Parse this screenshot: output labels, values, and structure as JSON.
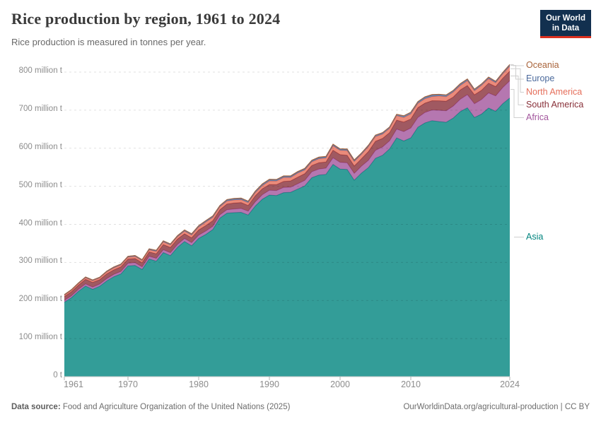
{
  "header": {
    "title": "Rice production by region, 1961 to 2024",
    "subtitle": "Rice production is measured in tonnes per year."
  },
  "logo": {
    "line1": "Our World",
    "line2": "in Data",
    "bg_color": "#12304F",
    "accent_color": "#DB301F"
  },
  "footer": {
    "source_label": "Data source:",
    "source_value": " Food and Agriculture Organization of the United Nations (2025)",
    "link_text": "OurWorldinData.org/agricultural-production | CC BY"
  },
  "chart_data": {
    "type": "area",
    "stacked": true,
    "title": "Rice production by region, 1961 to 2024",
    "subtitle": "Rice production is measured in tonnes per year.",
    "unit": "million tonnes per year",
    "xlim": [
      1961,
      2024
    ],
    "ylim": [
      0,
      824
    ],
    "grid": "dashed horizontal gridlines every 100 million t",
    "legend_position": "right, labels colored by series",
    "legend_order_top_to_bottom": [
      "Oceania",
      "Europe",
      "North America",
      "South America",
      "Africa",
      "Asia"
    ],
    "years": [
      1961,
      1962,
      1963,
      1964,
      1965,
      1966,
      1967,
      1968,
      1969,
      1970,
      1971,
      1972,
      1973,
      1974,
      1975,
      1976,
      1977,
      1978,
      1979,
      1980,
      1981,
      1982,
      1983,
      1984,
      1985,
      1986,
      1987,
      1988,
      1989,
      1990,
      1991,
      1992,
      1993,
      1994,
      1995,
      1996,
      1997,
      1998,
      1999,
      2000,
      2001,
      2002,
      2003,
      2004,
      2005,
      2006,
      2007,
      2008,
      2009,
      2010,
      2011,
      2012,
      2013,
      2014,
      2015,
      2016,
      2017,
      2018,
      2019,
      2020,
      2021,
      2022,
      2023,
      2024
    ],
    "series": [
      {
        "name": "Asia",
        "color": "#00847E",
        "values": [
          195.5,
          207.4,
          224.3,
          238.2,
          229.5,
          237.4,
          251.5,
          262.4,
          269.9,
          291.0,
          292.2,
          281.6,
          309.1,
          303.3,
          325.9,
          318.0,
          339.7,
          355.0,
          343.7,
          363.2,
          373.5,
          386.5,
          416.6,
          429.6,
          430.8,
          431.6,
          424.7,
          448.0,
          466.0,
          477.0,
          475.7,
          483.3,
          484.2,
          492.7,
          500.9,
          522.7,
          529.4,
          531.4,
          557.6,
          545.3,
          544.4,
          516.1,
          534.3,
          549.1,
          573.6,
          581.5,
          598.5,
          627.2,
          619.2,
          627.2,
          655.2,
          666.5,
          672.4,
          670.1,
          668.2,
          679.3,
          696.2,
          706.3,
          680.9,
          689.8,
          705.8,
          696.9,
          716.9,
          732.1
        ]
      },
      {
        "name": "Africa",
        "color": "#A2559C",
        "values": [
          4.9,
          5.0,
          5.3,
          5.4,
          5.6,
          5.7,
          6.1,
          6.3,
          6.5,
          6.9,
          7.0,
          6.8,
          7.1,
          7.5,
          7.5,
          7.6,
          7.6,
          7.9,
          8.2,
          8.6,
          8.9,
          8.6,
          8.4,
          9.0,
          9.6,
          10.2,
          10.1,
          11.2,
          12.0,
          12.6,
          13.2,
          13.5,
          13.4,
          13.8,
          14.6,
          15.5,
          15.9,
          16.4,
          17.2,
          17.4,
          17.3,
          17.7,
          18.3,
          19.0,
          20.7,
          21.7,
          21.1,
          23.1,
          24.5,
          26.0,
          25.5,
          27.6,
          28.0,
          29.5,
          30.0,
          31.5,
          32.5,
          34.5,
          36.0,
          38.0,
          39.5,
          40.5,
          42.5,
          45.0
        ]
      },
      {
        "name": "South America",
        "color": "#883039",
        "values": [
          9.8,
          10.5,
          10.7,
          12.0,
          12.5,
          11.5,
          12.4,
          11.8,
          12.0,
          11.0,
          11.2,
          11.0,
          11.5,
          12.0,
          13.5,
          13.8,
          14.0,
          12.5,
          12.8,
          13.5,
          14.5,
          14.8,
          13.5,
          14.8,
          15.8,
          15.5,
          15.0,
          15.8,
          15.5,
          15.0,
          15.5,
          16.0,
          16.5,
          17.5,
          17.5,
          16.5,
          16.8,
          16.0,
          20.0,
          20.5,
          19.8,
          19.5,
          19.5,
          23.0,
          23.9,
          22.5,
          21.5,
          23.5,
          25.0,
          23.5,
          26.0,
          24.5,
          24.5,
          25.0,
          25.5,
          23.5,
          24.5,
          24.0,
          23.5,
          24.5,
          25.5,
          24.5,
          24.5,
          25.5
        ]
      },
      {
        "name": "North America",
        "color": "#E56E5A",
        "values": [
          3.3,
          3.6,
          3.8,
          4.0,
          4.2,
          4.5,
          4.9,
          5.2,
          4.9,
          4.7,
          5.1,
          5.2,
          5.3,
          6.1,
          6.9,
          6.4,
          6.0,
          6.8,
          7.2,
          7.9,
          9.3,
          8.5,
          7.5,
          7.8,
          7.7,
          7.4,
          7.0,
          8.0,
          8.2,
          9.3,
          9.2,
          10.1,
          8.9,
          10.5,
          9.7,
          9.5,
          10.1,
          10.5,
          11.5,
          11.2,
          11.9,
          11.7,
          11.3,
          12.8,
          12.4,
          11.1,
          11.2,
          11.7,
          12.2,
          13.3,
          10.8,
          11.4,
          10.7,
          12.4,
          11.6,
          13.2,
          11.5,
          12.5,
          10.5,
          12.6,
          11.7,
          10.0,
          11.0,
          12.8
        ]
      },
      {
        "name": "Europe",
        "color": "#4C6A9C",
        "values": [
          1.9,
          1.9,
          2.0,
          2.1,
          2.1,
          2.0,
          2.2,
          2.3,
          2.3,
          2.4,
          2.5,
          2.5,
          2.6,
          2.7,
          2.7,
          2.5,
          2.6,
          2.8,
          2.9,
          3.0,
          3.1,
          3.2,
          3.1,
          3.3,
          3.4,
          3.5,
          3.6,
          3.6,
          3.7,
          3.7,
          3.5,
          3.4,
          3.3,
          3.2,
          3.2,
          3.3,
          3.2,
          3.1,
          3.2,
          3.2,
          3.1,
          3.2,
          3.3,
          3.4,
          3.5,
          3.4,
          3.5,
          3.5,
          4.2,
          4.3,
          4.4,
          4.2,
          4.1,
          4.0,
          4.1,
          4.1,
          4.2,
          4.1,
          4.0,
          4.0,
          4.1,
          3.4,
          3.6,
          4.0
        ]
      },
      {
        "name": "Oceania",
        "color": "#A86339",
        "values": [
          0.2,
          0.2,
          0.2,
          0.2,
          0.2,
          0.2,
          0.3,
          0.3,
          0.3,
          0.3,
          0.3,
          0.3,
          0.3,
          0.4,
          0.5,
          0.5,
          0.6,
          0.6,
          0.7,
          0.7,
          0.8,
          0.9,
          0.6,
          0.9,
          0.9,
          0.8,
          0.7,
          0.8,
          0.9,
          1.0,
          0.9,
          1.1,
          1.2,
          1.2,
          1.2,
          1.0,
          1.4,
          1.4,
          1.4,
          1.1,
          1.8,
          1.3,
          0.4,
          0.6,
          0.3,
          1.0,
          0.2,
          0.1,
          0.1,
          0.2,
          0.7,
          0.9,
          1.2,
          0.8,
          0.7,
          0.3,
          0.8,
          0.6,
          0.1,
          0.1,
          0.4,
          0.7,
          0.5,
          0.6
        ]
      }
    ],
    "yticks": [
      {
        "value": 0,
        "label": "0 t"
      },
      {
        "value": 100,
        "label": "100 million t"
      },
      {
        "value": 200,
        "label": "200 million t"
      },
      {
        "value": 300,
        "label": "300 million t"
      },
      {
        "value": 400,
        "label": "400 million t"
      },
      {
        "value": 500,
        "label": "500 million t"
      },
      {
        "value": 600,
        "label": "600 million t"
      },
      {
        "value": 700,
        "label": "700 million t"
      },
      {
        "value": 800,
        "label": "800 million t"
      }
    ],
    "xticks": [
      {
        "year": 1961,
        "label": "1961"
      },
      {
        "year": 1970,
        "label": "1970"
      },
      {
        "year": 1980,
        "label": "1980"
      },
      {
        "year": 1990,
        "label": "1990"
      },
      {
        "year": 2000,
        "label": "2000"
      },
      {
        "year": 2010,
        "label": "2010"
      },
      {
        "year": 2024,
        "label": "2024"
      }
    ]
  }
}
